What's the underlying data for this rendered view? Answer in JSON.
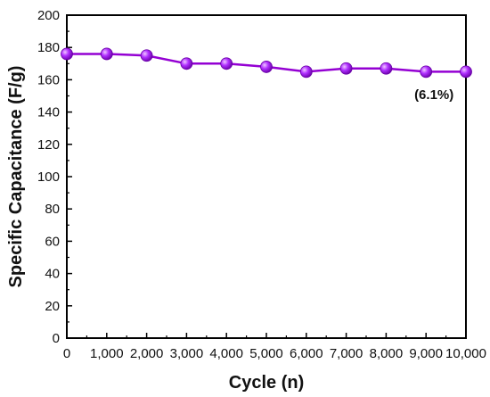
{
  "chart_data": {
    "type": "line",
    "x": [
      0,
      1000,
      2000,
      3000,
      4000,
      5000,
      6000,
      7000,
      8000,
      9000,
      10000
    ],
    "series": [
      {
        "values": [
          176,
          176,
          175,
          170,
          170,
          168,
          165,
          167,
          167,
          165,
          165
        ]
      }
    ],
    "xlabel": "Cycle (n)",
    "ylabel": "Specific Capacitance (F/g)",
    "xlim": [
      0,
      10000
    ],
    "ylim": [
      0,
      200
    ],
    "xticks": [
      "0",
      "1,000",
      "2,000",
      "3,000",
      "4,000",
      "5,000",
      "6,000",
      "7,000",
      "8,000",
      "9,000",
      "10,000"
    ],
    "yticks": [
      "0",
      "20",
      "40",
      "60",
      "80",
      "100",
      "120",
      "140",
      "160",
      "180",
      "200"
    ],
    "annotations": [
      {
        "text": "(6.1%)",
        "x": 9200,
        "y": 148
      }
    ],
    "grid": false,
    "colors": {
      "series": "#9400d3",
      "marker": "#a020f0",
      "axis": "#000000"
    }
  }
}
